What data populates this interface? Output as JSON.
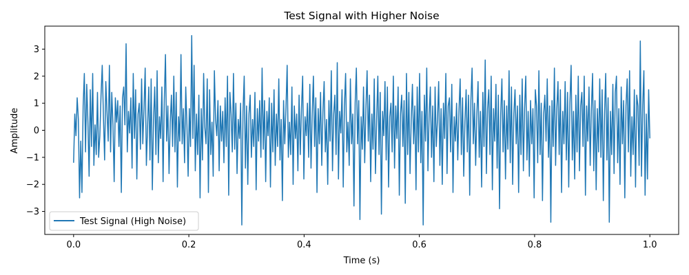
{
  "chart_data": {
    "type": "line",
    "title": "Test Signal with Higher Noise",
    "xlabel": "Time (s)",
    "ylabel": "Amplitude",
    "xlim": [
      -0.05,
      1.05
    ],
    "ylim": [
      -3.85,
      3.85
    ],
    "xticks": [
      {
        "value": 0.0,
        "label": "0.0"
      },
      {
        "value": 0.2,
        "label": "0.2"
      },
      {
        "value": 0.4,
        "label": "0.4"
      },
      {
        "value": 0.6,
        "label": "0.6"
      },
      {
        "value": 0.8,
        "label": "0.8"
      },
      {
        "value": 1.0,
        "label": "1.0"
      }
    ],
    "yticks": [
      {
        "value": -3,
        "label": "−3"
      },
      {
        "value": -2,
        "label": "−2"
      },
      {
        "value": -1,
        "label": "−1"
      },
      {
        "value": 0,
        "label": "0"
      },
      {
        "value": 1,
        "label": "1"
      },
      {
        "value": 2,
        "label": "2"
      },
      {
        "value": 3,
        "label": "3"
      }
    ],
    "grid": false,
    "legend": {
      "position": "lower-left"
    },
    "series": [
      {
        "name": "Test Signal (High Noise)",
        "color": "#1f77b4",
        "x_start": 0.0,
        "x_end": 1.0,
        "values": [
          -1.2,
          0.6,
          -0.2,
          1.2,
          0.4,
          -2.5,
          -0.4,
          -2.3,
          0.9,
          2.1,
          -0.8,
          1.7,
          0.3,
          -1.7,
          1.5,
          -0.6,
          2.1,
          -1.3,
          0.2,
          -0.9,
          1.4,
          -1.0,
          -0.2,
          1.3,
          2.4,
          0.5,
          -1.1,
          1.8,
          0.7,
          -0.4,
          2.4,
          -0.8,
          1.4,
          0.2,
          -1.9,
          1.2,
          0.3,
          1.1,
          -0.6,
          0.9,
          -2.3,
          1.2,
          1.6,
          0.2,
          3.2,
          -0.8,
          0.7,
          -0.1,
          1.2,
          -1.4,
          2.1,
          -0.3,
          1.5,
          -1.8,
          0.6,
          1.0,
          -0.7,
          1.9,
          -0.5,
          0.8,
          2.3,
          -1.3,
          0.1,
          1.6,
          -1.1,
          1.9,
          -2.2,
          0.4,
          1.6,
          -0.9,
          2.2,
          -1.2,
          0.5,
          -0.3,
          1.6,
          -1.9,
          1.1,
          2.8,
          -0.4,
          0.9,
          -1.6,
          0.3,
          1.3,
          -0.6,
          2.0,
          -0.8,
          1.4,
          -2.1,
          0.5,
          -0.4,
          2.8,
          -0.5,
          0.8,
          -1.2,
          1.6,
          0.2,
          -1.7,
          0.8,
          -0.6,
          3.5,
          -0.3,
          2.4,
          -1.5,
          0.6,
          -0.9,
          1.3,
          -2.5,
          0.8,
          -1.1,
          2.1,
          0.1,
          -0.5,
          1.9,
          -2.3,
          1.5,
          -0.9,
          0.3,
          -1.7,
          2.2,
          0.4,
          -0.2,
          1.1,
          -1.5,
          0.9,
          -0.4,
          0.7,
          -1.2,
          1.2,
          -0.6,
          2.0,
          -2.4,
          1.4,
          0.6,
          -0.8,
          2.1,
          -0.7,
          1.0,
          -1.6,
          0.4,
          -0.3,
          1.0,
          -3.5,
          0.7,
          2.0,
          -1.4,
          0.9,
          -2.0,
          0.6,
          1.3,
          -1.0,
          0.4,
          -0.6,
          1.4,
          -2.2,
          0.8,
          -0.4,
          1.1,
          -1.0,
          2.3,
          -0.7,
          1.1,
          -1.9,
          0.7,
          -0.2,
          1.2,
          -2.1,
          1.0,
          -0.8,
          1.5,
          -1.3,
          0.6,
          -0.6,
          1.9,
          -1.1,
          0.4,
          -2.6,
          1.1,
          -0.5,
          0.8,
          2.4,
          -1.0,
          0.3,
          -0.9,
          1.6,
          -2.0,
          0.9,
          -0.3,
          0.6,
          -1.5,
          1.3,
          -0.9,
          0.8,
          2.0,
          -1.8,
          0.5,
          -0.2,
          1.0,
          -1.0,
          1.7,
          -1.4,
          0.6,
          2.0,
          -0.6,
          1.2,
          -2.3,
          0.8,
          -0.5,
          1.4,
          -1.3,
          0.7,
          1.8,
          -0.8,
          0.4,
          -2.0,
          1.1,
          -0.4,
          2.2,
          -1.5,
          0.6,
          1.3,
          -0.9,
          2.5,
          -1.8,
          0.7,
          -0.1,
          1.5,
          -2.1,
          0.9,
          2.1,
          -0.8,
          0.3,
          -1.3,
          1.9,
          -0.5,
          0.6,
          -2.8,
          1.0,
          2.3,
          -0.5,
          1.1,
          -3.3,
          0.5,
          -0.7,
          1.6,
          -1.2,
          0.8,
          2.2,
          -0.4,
          1.3,
          -1.9,
          0.6,
          -0.7,
          1.9,
          -1.6,
          0.4,
          2.0,
          -0.9,
          1.4,
          -3.1,
          0.7,
          -0.2,
          1.8,
          -1.1,
          1.6,
          -2.1,
          0.5,
          1.0,
          -0.8,
          2.0,
          -1.4,
          0.9,
          -0.3,
          1.6,
          -2.4,
          0.6,
          1.3,
          -0.6,
          1.1,
          -2.7,
          2.1,
          -0.9,
          1.4,
          -1.6,
          0.4,
          1.7,
          -0.5,
          0.9,
          -2.2,
          1.6,
          -0.8,
          2.1,
          -1.2,
          0.7,
          -3.5,
          1.3,
          -0.4,
          2.3,
          -1.5,
          0.6,
          1.6,
          -1.0,
          0.9,
          -1.9,
          1.6,
          -0.6,
          0.4,
          1.8,
          -1.3,
          0.8,
          -2.0,
          1.0,
          -0.3,
          2.1,
          -1.6,
          0.9,
          1.2,
          -0.8,
          1.7,
          -2.3,
          0.5,
          -0.4,
          1.0,
          -1.1,
          0.7,
          1.9,
          -0.9,
          1.2,
          -1.7,
          0.3,
          1.5,
          -0.8,
          1.3,
          -2.4,
          1.1,
          2.3,
          -0.5,
          1.0,
          -1.3,
          0.6,
          1.8,
          -1.0,
          0.7,
          -2.1,
          1.4,
          -0.6,
          2.6,
          -1.6,
          0.8,
          1.5,
          -0.9,
          2.0,
          -2.2,
          0.8,
          -0.4,
          1.7,
          -1.4,
          1.3,
          -2.9,
          0.6,
          1.9,
          -0.8,
          1.1,
          -1.8,
          0.9,
          -0.7,
          2.2,
          -1.2,
          1.6,
          -2.0,
          0.6,
          1.5,
          -0.5,
          0.9,
          -2.3,
          1.3,
          -0.9,
          1.9,
          -1.5,
          0.8,
          2.0,
          -1.1,
          0.7,
          -1.7,
          1.1,
          -0.5,
          0.8,
          -2.5,
          1.5,
          0.9,
          -1.2,
          2.2,
          -0.9,
          1.0,
          -2.6,
          0.6,
          1.3,
          -0.4,
          1.9,
          -1.0,
          0.9,
          -3.4,
          1.1,
          -0.6,
          2.3,
          -1.3,
          0.8,
          1.8,
          -0.9,
          1.5,
          -2.3,
          0.7,
          -0.5,
          1.8,
          -1.1,
          1.4,
          -2.1,
          1.0,
          2.4,
          -1.1,
          0.7,
          -1.8,
          1.3,
          -0.8,
          2.0,
          -1.5,
          0.9,
          1.4,
          -0.6,
          2.0,
          -2.4,
          0.9,
          -0.4,
          1.6,
          -1.3,
          0.8,
          2.1,
          -1.5,
          1.1,
          -2.2,
          0.8,
          -0.8,
          1.9,
          -1.0,
          1.5,
          -2.6,
          0.6,
          2.1,
          -1.1,
          1.2,
          -3.4,
          0.7,
          -0.9,
          1.7,
          -1.6,
          1.4,
          2.0,
          -1.2,
          0.8,
          -2.0,
          1.6,
          -0.5,
          1.1,
          -2.5,
          0.9,
          1.9,
          -0.8,
          2.2,
          -1.7,
          0.5,
          -0.9,
          1.5,
          -2.1,
          1.3,
          0.9,
          -1.3,
          3.3,
          -1.7,
          0.9,
          2.2,
          -2.4,
          0.6,
          -1.8,
          1.5,
          -0.3
        ]
      }
    ]
  }
}
